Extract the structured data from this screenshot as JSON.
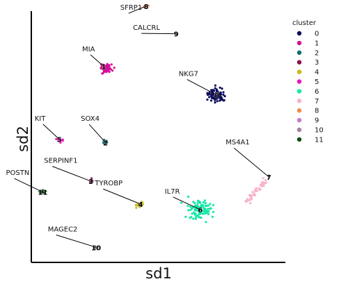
{
  "chart_data": {
    "type": "scatter",
    "xlabel": "sd1",
    "ylabel": "sd2",
    "grid": false,
    "legend_position": "right",
    "legend_title": "cluster",
    "clusters": [
      {
        "id": "0",
        "color": "#0d0d5a",
        "center": [
          0.73,
          0.666
        ],
        "spread": 0.018,
        "n": 70,
        "gene": "NKG7",
        "label_at": [
          0.58,
          0.742
        ]
      },
      {
        "id": "1",
        "color": "#d60e9a",
        "center": [
          0.285,
          0.78
        ],
        "spread": 0.012,
        "n": 55,
        "gene": "MIA",
        "label_at": [
          0.2,
          0.84
        ]
      },
      {
        "id": "2",
        "color": "#0f6e6e",
        "center": [
          0.292,
          0.477
        ],
        "spread": 0.006,
        "n": 14,
        "gene": "SOX4",
        "label_at": [
          0.195,
          0.563
        ]
      },
      {
        "id": "3",
        "color": "#8a0d52",
        "center": [
          0.235,
          0.323
        ],
        "spread": 0.004,
        "n": 9,
        "gene": "SERPINF1",
        "label_at": [
          0.05,
          0.396
        ]
      },
      {
        "id": "4",
        "color": "#c9b914",
        "center": [
          0.43,
          0.232
        ],
        "spread": 0.008,
        "n": 16,
        "gene": "TYROBP",
        "label_at": [
          0.25,
          0.306
        ]
      },
      {
        "id": "5",
        "color": "#ee13b8",
        "center": [
          0.11,
          0.49
        ],
        "spread": 0.006,
        "n": 10,
        "gene": "KIT",
        "label_at": [
          0.013,
          0.564
        ]
      },
      {
        "id": "6",
        "color": "#12e8a6",
        "center": [
          0.665,
          0.21
        ],
        "spread": 0.022,
        "n": 110,
        "gene": "IL7R",
        "label_at": [
          0.525,
          0.274
        ]
      },
      {
        "id": "7",
        "color": "#f7b3c9",
        "center": [
          0.935,
          0.34
        ],
        "spread": 0.02,
        "n": 45,
        "gene": "MS4A1",
        "label_at": [
          0.765,
          0.469
        ]
      },
      {
        "id": "8",
        "color": "#f08a50",
        "center": [
          0.452,
          1.02
        ],
        "spread": 0.003,
        "n": 6,
        "gene": "SFRP1",
        "label_at": [
          0.35,
          1.005
        ]
      },
      {
        "id": "9",
        "color": "#c67acb",
        "center": [
          0.57,
          0.91
        ],
        "spread": 0.004,
        "n": 5,
        "gene": "CALCRL",
        "label_at": [
          0.4,
          0.925
        ]
      },
      {
        "id": "10",
        "color": "#a3809e",
        "center": [
          0.255,
          0.06
        ],
        "spread": 0.004,
        "n": 8,
        "gene": "MAGEC2",
        "label_at": [
          0.065,
          0.123
        ]
      },
      {
        "id": "11",
        "color": "#0c4e12",
        "center": [
          0.045,
          0.28
        ],
        "spread": 0.005,
        "n": 12,
        "gene": "POSTN",
        "label_at": [
          -0.1,
          0.348
        ]
      }
    ]
  }
}
